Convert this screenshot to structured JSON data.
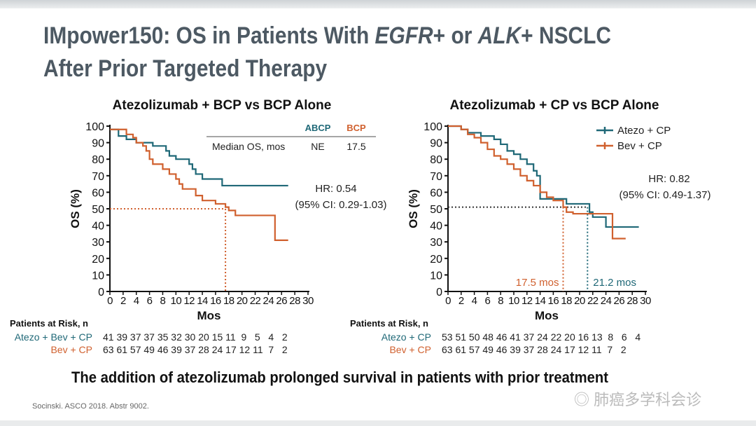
{
  "slide": {
    "title_line1_a": "IMpower150: OS in Patients With ",
    "title_line1_b": "EGFR",
    "title_line1_c": "+ or ",
    "title_line1_d": "ALK",
    "title_line1_e": "+ NSCLC",
    "title_line2": "After Prior Targeted Therapy",
    "conclusion": "The addition of atezolizumab prolonged survival in patients with prior treatment",
    "citation": "Socinski. ASCO 2018. Abstr 9002.",
    "watermark": "肺癌多学科会诊"
  },
  "colors": {
    "teal": "#1f6877",
    "orange": "#d0602e"
  },
  "chart_data": [
    {
      "type": "line",
      "title": "Atezolizumab + BCP vs BCP Alone",
      "xlabel": "Mos",
      "ylabel": "OS (%)",
      "xlim": [
        0,
        30
      ],
      "ylim": [
        0,
        100
      ],
      "xticks": [
        "0",
        "2",
        "4",
        "6",
        "8",
        "10",
        "12",
        "14",
        "16",
        "18",
        "20",
        "22",
        "24",
        "26",
        "28",
        "30"
      ],
      "yticks": [
        "0",
        "10",
        "20",
        "30",
        "40",
        "50",
        "60",
        "70",
        "80",
        "90",
        "100"
      ],
      "table": {
        "headers": [
          "ABCP",
          "BCP"
        ],
        "row_label": "Median OS, mos",
        "values": [
          "NE",
          "17.5"
        ]
      },
      "hr": "HR: 0.54",
      "ci": "(95% CI: 0.29-1.03)",
      "median_line": {
        "y": 50,
        "x": 17.5
      },
      "series": [
        {
          "name": "ABCP",
          "color": "#1f6877",
          "x": [
            0,
            1.3,
            1.3,
            2.5,
            4,
            6.5,
            8.5,
            8.5,
            9,
            10,
            12,
            12.5,
            13,
            14,
            17,
            17,
            27
          ],
          "y": [
            98,
            98,
            94,
            92,
            90,
            88,
            88,
            85,
            82,
            80,
            77,
            74,
            71,
            68,
            68,
            64,
            64
          ]
        },
        {
          "name": "BCP",
          "color": "#d0602e",
          "x": [
            0,
            2,
            2.5,
            3.5,
            4,
            5,
            5.5,
            6,
            6.5,
            8,
            9,
            10,
            10.5,
            11,
            13,
            14,
            16,
            17.5,
            18,
            19,
            25,
            25,
            27
          ],
          "y": [
            98,
            98,
            95,
            93,
            90,
            88,
            85,
            80,
            77,
            74,
            71,
            68,
            65,
            62,
            58,
            55,
            53,
            51,
            49,
            46,
            46,
            31,
            31
          ]
        }
      ],
      "risk": {
        "heading": "Patients at Risk, n",
        "rows": [
          {
            "label": "Atezo + Bev + CP",
            "values": "41 39 37 37 35 32 30 20 15 11  9   5   4   2"
          },
          {
            "label": "Bev + CP",
            "values": "63 61 57 49 46 39 37 28 24 17 12 11  7   2"
          }
        ]
      }
    },
    {
      "type": "line",
      "title": "Atezolizumab + CP vs BCP Alone",
      "xlabel": "Mos",
      "ylabel": "OS (%)",
      "xlim": [
        0,
        30
      ],
      "ylim": [
        0,
        100
      ],
      "xticks": [
        "0",
        "2",
        "4",
        "6",
        "8",
        "10",
        "12",
        "14",
        "16",
        "18",
        "20",
        "22",
        "24",
        "26",
        "28",
        "30"
      ],
      "yticks": [
        "0",
        "10",
        "20",
        "30",
        "40",
        "50",
        "60",
        "70",
        "80",
        "90",
        "100"
      ],
      "legend": [
        "Atezo + CP",
        "Bev + CP"
      ],
      "legend_position": "top-right",
      "hr": "HR: 0.82",
      "ci": "(95% CI: 0.49-1.37)",
      "medians": [
        {
          "label": "17.5 mos",
          "x": 17.5,
          "color": "#d0602e"
        },
        {
          "label": "21.2 mos",
          "x": 21.2,
          "color": "#1f6877"
        }
      ],
      "series": [
        {
          "name": "Atezo + CP",
          "color": "#1f6877",
          "x": [
            0,
            2,
            2,
            3,
            5,
            7,
            8,
            9,
            10,
            11,
            12,
            13,
            13,
            13.5,
            14,
            14,
            18,
            18,
            21,
            21.5,
            22,
            24,
            29
          ],
          "y": [
            100,
            100,
            98,
            96,
            94,
            92,
            89,
            85,
            83,
            80,
            77,
            77,
            73,
            70,
            66,
            56,
            56,
            53,
            53,
            48,
            45,
            39,
            39
          ]
        },
        {
          "name": "Bev + CP",
          "color": "#d0602e",
          "x": [
            0,
            2,
            3,
            4,
            5,
            6,
            7,
            8,
            9,
            10,
            11,
            12,
            13,
            14,
            15,
            16,
            17.5,
            18,
            19,
            25,
            25,
            27
          ],
          "y": [
            100,
            98,
            95,
            93,
            90,
            86,
            82,
            80,
            77,
            74,
            70,
            67,
            64,
            60,
            57,
            55,
            51,
            48,
            47,
            47,
            32,
            32
          ]
        }
      ],
      "risk": {
        "heading": "Patients at Risk, n",
        "rows": [
          {
            "label": "Atezo + CP",
            "values": "53 51 50 48 46 41 37 24 22 20 16 13  8   6   4"
          },
          {
            "label": "Bev + CP",
            "values": "63 61 57 49 46 39 37 28 24 17 12 11  7   2"
          }
        ]
      }
    }
  ]
}
